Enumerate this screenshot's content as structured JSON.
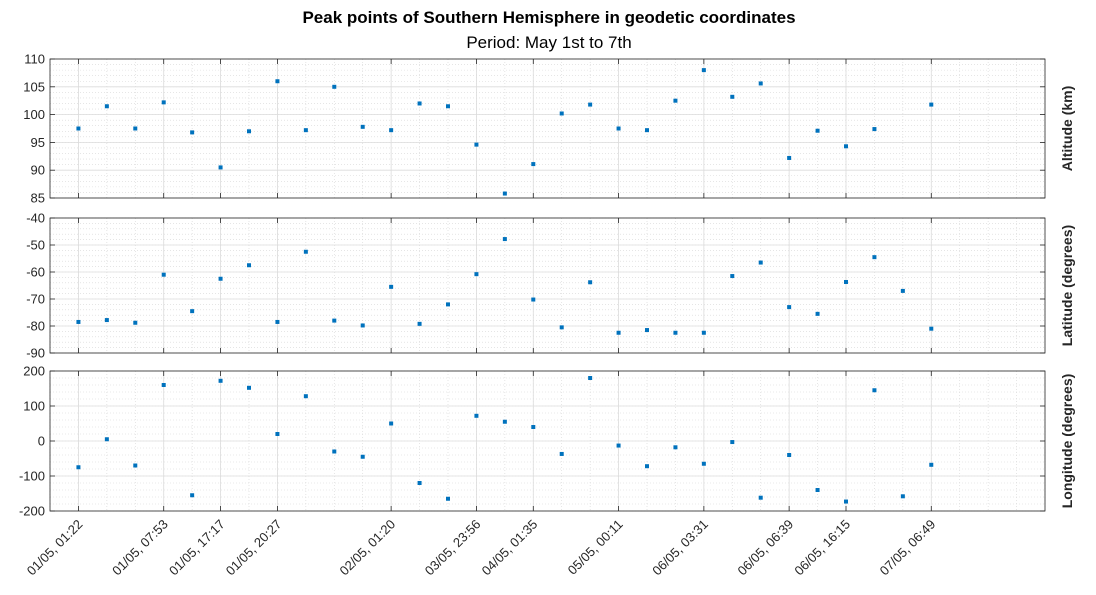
{
  "title": "Peak points of Southern Hemisphere in geodetic coordinates",
  "subtitle": "Period: May 1st to 7th",
  "chart_data": [
    {
      "type": "scatter",
      "ylabel": "Altitude (km)",
      "ylim": [
        85,
        110
      ],
      "yticks": [
        85,
        90,
        95,
        100,
        105,
        110
      ],
      "grid": true,
      "minor_grid": true,
      "marker_color": "#0072BD",
      "series": [
        {
          "values": [
            97.5,
            101.5,
            97.5,
            102.2,
            96.8,
            90.5,
            97.0,
            106.0,
            97.2,
            105.0,
            97.8,
            97.2,
            102.0,
            101.5,
            94.6,
            85.8,
            91.1,
            100.2,
            101.8,
            97.5,
            97.2,
            102.5,
            108.0,
            103.2,
            105.6,
            92.2,
            97.1,
            94.3,
            97.4,
            null,
            101.8
          ]
        }
      ]
    },
    {
      "type": "scatter",
      "ylabel": "Latitude (degrees)",
      "ylim": [
        -90,
        -40
      ],
      "yticks": [
        -90,
        -80,
        -70,
        -60,
        -50,
        -40
      ],
      "grid": true,
      "minor_grid": true,
      "marker_color": "#0072BD",
      "series": [
        {
          "values": [
            -78.5,
            -77.8,
            -78.8,
            -61.0,
            -74.5,
            -62.5,
            -57.5,
            -78.5,
            -52.5,
            -78.0,
            -79.8,
            -65.5,
            -79.2,
            -72.0,
            -60.8,
            -47.8,
            -70.2,
            -80.5,
            -63.8,
            -82.5,
            -81.5,
            -82.5,
            -82.5,
            -61.5,
            -56.5,
            -73.0,
            -75.5,
            -63.7,
            -54.5,
            -67.0,
            -81.0
          ]
        }
      ]
    },
    {
      "type": "scatter",
      "ylabel": "Longitude (degrees)",
      "ylim": [
        -200,
        200
      ],
      "yticks": [
        -200,
        -100,
        0,
        100,
        200
      ],
      "grid": true,
      "minor_grid": true,
      "marker_color": "#0072BD",
      "series": [
        {
          "values": [
            -75,
            5,
            -70,
            160,
            -155,
            172,
            152,
            20,
            128,
            -30,
            -45,
            50,
            -120,
            -165,
            72,
            55,
            40,
            -37,
            180,
            -13,
            -72,
            -18,
            -65,
            -3,
            -162,
            -40,
            -140,
            -173,
            145,
            -158,
            -68
          ]
        }
      ]
    }
  ],
  "x_tick_labels": [
    "01/05, 01:22",
    "01/05, 07:53",
    "01/05, 17:17",
    "01/05, 20:27",
    "02/05, 01:20",
    "03/05, 23:56",
    "04/05, 01:35",
    "05/05, 00:11",
    "06/05, 03:31",
    "06/05, 06:39",
    "06/05, 16:15",
    "07/05, 06:49"
  ],
  "x_tick_positions": [
    1,
    4,
    6,
    8,
    12,
    15,
    17,
    20,
    23,
    26,
    28,
    31
  ],
  "xlim": [
    0,
    35
  ]
}
